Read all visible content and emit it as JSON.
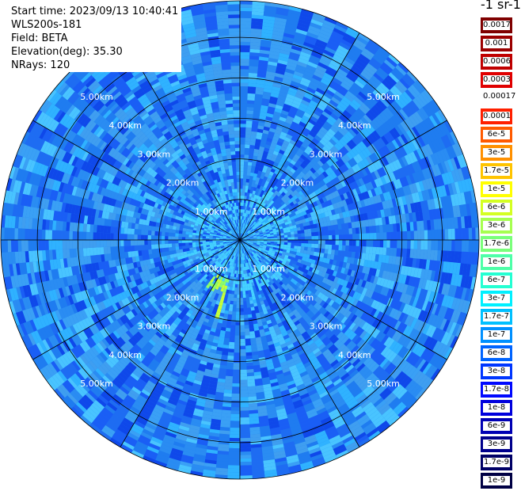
{
  "info": {
    "start_time": "Start time: 2023/09/13 10:40:41",
    "instrument": "WLS200s-181",
    "field": "Field: BETA",
    "elevation": "Elevation(deg): 35.30",
    "nrays": "NRays: 120"
  },
  "colorbar": {
    "unit": "-1 sr-1",
    "dark_levels": [
      {
        "label": "0.0017",
        "color": "#7f0000"
      },
      {
        "label": "0.001",
        "color": "#9b0000"
      },
      {
        "label": "0.0006",
        "color": "#c00000"
      },
      {
        "label": "0.0003",
        "color": "#e00000"
      }
    ],
    "separator_label": "0.00017",
    "levels": [
      {
        "label": "0.0001",
        "color": "#ff2000"
      },
      {
        "label": "6e-5",
        "color": "#ff5a00"
      },
      {
        "label": "3e-5",
        "color": "#ff9000"
      },
      {
        "label": "1.7e-5",
        "color": "#ffc400"
      },
      {
        "label": "1e-5",
        "color": "#ffff00"
      },
      {
        "label": "6e-6",
        "color": "#d4ff22"
      },
      {
        "label": "3e-6",
        "color": "#a6ff50"
      },
      {
        "label": "1.7e-6",
        "color": "#7aff7a"
      },
      {
        "label": "1e-6",
        "color": "#4effa8"
      },
      {
        "label": "6e-7",
        "color": "#24ffd2"
      },
      {
        "label": "3e-7",
        "color": "#00f0ff"
      },
      {
        "label": "1.7e-7",
        "color": "#00c0ff"
      },
      {
        "label": "1e-7",
        "color": "#0090ff"
      },
      {
        "label": "6e-8",
        "color": "#0064ff"
      },
      {
        "label": "3e-8",
        "color": "#0036ff"
      },
      {
        "label": "1.7e-8",
        "color": "#0008ff"
      },
      {
        "label": "1e-8",
        "color": "#0000dd"
      },
      {
        "label": "6e-9",
        "color": "#0000b4"
      },
      {
        "label": "3e-9",
        "color": "#00008c"
      },
      {
        "label": "1.7e-9",
        "color": "#000066"
      },
      {
        "label": "1e-9",
        "color": "#000044"
      }
    ]
  },
  "chart_data": {
    "type": "heatmap",
    "projection": "polar",
    "rays": 120,
    "range_rings_km": [
      1,
      2,
      3,
      4,
      5
    ],
    "max_range_km": 5.9,
    "spoke_angles_deg": [
      0,
      30,
      60,
      90,
      120,
      150,
      180,
      210,
      240,
      270,
      300,
      330
    ],
    "ring_labels": [
      "1.00km",
      "2.00km",
      "3.00km",
      "4.00km",
      "5.00km"
    ],
    "dominant_value_range": [
      "1e-8",
      "3e-7"
    ],
    "features": [
      {
        "description": "higher backscatter streak",
        "azimuth_deg": 205,
        "range_km": [
          1.0,
          1.4
        ],
        "value": "1.7e-6"
      }
    ]
  }
}
